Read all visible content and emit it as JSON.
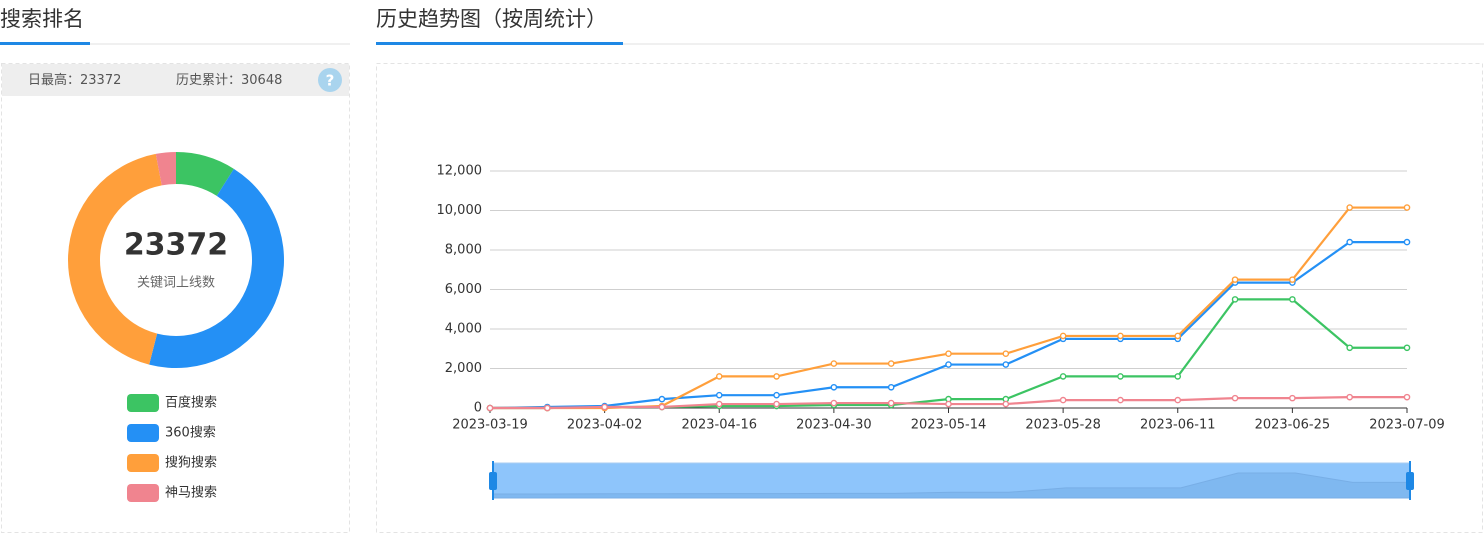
{
  "left_panel": {
    "title": "搜索排名",
    "stats": [
      {
        "label": "日最高：",
        "value": 23372
      },
      {
        "label": "历史累计：",
        "value": 30648
      }
    ],
    "help_icon": "?"
  },
  "right_panel": {
    "title": "历史趋势图（按周统计）"
  },
  "chart_data": [
    {
      "type": "pie",
      "center_value": 23372,
      "center_label": "关键词上线数",
      "categories": [
        "百度搜索",
        "360搜索",
        "搜狗搜索",
        "神马搜索"
      ],
      "values": [
        9,
        45,
        43,
        3
      ],
      "colors": [
        "#3cc463",
        "#2490f5",
        "#ff9f3b",
        "#f0848f"
      ],
      "legend": "bottom"
    },
    {
      "type": "line",
      "x": [
        "2023-03-19",
        "2023-03-26",
        "2023-04-02",
        "2023-04-09",
        "2023-04-16",
        "2023-04-23",
        "2023-04-30",
        "2023-05-07",
        "2023-05-14",
        "2023-05-21",
        "2023-05-28",
        "2023-06-04",
        "2023-06-11",
        "2023-06-18",
        "2023-06-25",
        "2023-07-02",
        "2023-07-09"
      ],
      "xlim": [
        "2023-03-19",
        "2023-07-09"
      ],
      "xticks": [
        "2023-03-19",
        "2023-04-02",
        "2023-04-16",
        "2023-04-30",
        "2023-05-14",
        "2023-05-28",
        "2023-06-11",
        "2023-06-25",
        "2023-07-09"
      ],
      "ylim": [
        0,
        12000
      ],
      "yticks": [
        0,
        {
          "value": 2000,
          "label": "2,000"
        },
        {
          "value": 4000,
          "label": "4,000"
        },
        {
          "value": 6000,
          "label": "6,000"
        },
        {
          "value": 8000,
          "label": "8,000"
        },
        {
          "value": 10000,
          "label": "10,000"
        },
        {
          "value": 12000,
          "label": "12,000"
        }
      ],
      "grid": true,
      "series": [
        {
          "name": "百度搜索",
          "color": "#3cc463",
          "values": [
            0,
            0,
            50,
            50,
            100,
            100,
            150,
            150,
            450,
            450,
            1600,
            1600,
            1600,
            5500,
            5500,
            3050,
            3050
          ]
        },
        {
          "name": "360搜索",
          "color": "#2490f5",
          "values": [
            0,
            50,
            100,
            450,
            650,
            650,
            1050,
            1050,
            2200,
            2200,
            3500,
            3500,
            3500,
            6350,
            6350,
            8400,
            8400
          ]
        },
        {
          "name": "搜狗搜索",
          "color": "#ff9f3b",
          "values": [
            0,
            0,
            0,
            100,
            1600,
            1600,
            2250,
            2250,
            2750,
            2750,
            3650,
            3650,
            3650,
            6500,
            6500,
            10150,
            10150
          ]
        },
        {
          "name": "神马搜索",
          "color": "#f0848f",
          "values": [
            0,
            0,
            50,
            50,
            200,
            200,
            250,
            250,
            200,
            200,
            400,
            400,
            400,
            500,
            500,
            550,
            550
          ]
        }
      ]
    }
  ]
}
